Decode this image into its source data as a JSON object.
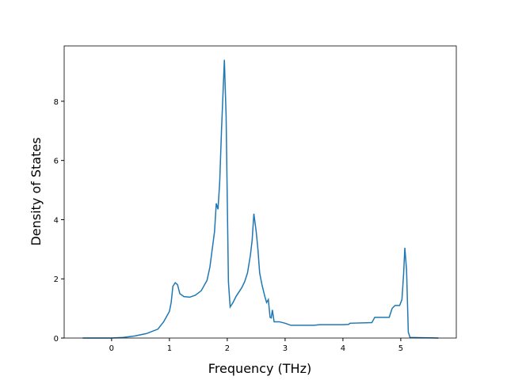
{
  "chart_data": {
    "type": "line",
    "x_label": "Frequency (THz)",
    "y_label": "Density of States",
    "xlim": [
      -0.82,
      5.96
    ],
    "ylim": [
      0,
      9.87
    ],
    "xticks": [
      0,
      1,
      2,
      3,
      4,
      5
    ],
    "yticks": [
      0,
      2,
      4,
      6,
      8
    ],
    "series": [
      {
        "color": "#1f77b4",
        "x": [
          -0.5,
          0,
          0.2,
          0.4,
          0.6,
          0.8,
          0.9,
          1.0,
          1.03,
          1.06,
          1.1,
          1.14,
          1.18,
          1.25,
          1.35,
          1.45,
          1.55,
          1.65,
          1.7,
          1.74,
          1.78,
          1.81,
          1.84,
          1.87,
          1.9,
          1.95,
          1.98,
          2.02,
          2.05,
          2.1,
          2.15,
          2.25,
          2.3,
          2.35,
          2.4,
          2.43,
          2.46,
          2.5,
          2.53,
          2.56,
          2.6,
          2.65,
          2.68,
          2.71,
          2.74,
          2.76,
          2.78,
          2.81,
          2.9,
          3.0,
          3.1,
          3.5,
          3.6,
          4.0,
          4.1,
          4.12,
          4.5,
          4.55,
          4.8,
          4.85,
          4.9,
          4.98,
          5.02,
          5.05,
          5.07,
          5.1,
          5.13,
          5.16,
          5.65
        ],
        "values": [
          0,
          0,
          0.02,
          0.07,
          0.15,
          0.3,
          0.55,
          0.9,
          1.2,
          1.75,
          1.87,
          1.8,
          1.5,
          1.4,
          1.38,
          1.45,
          1.6,
          1.95,
          2.4,
          3.0,
          3.6,
          4.55,
          4.35,
          5.3,
          7.0,
          9.4,
          7.5,
          1.9,
          1.05,
          1.2,
          1.4,
          1.7,
          1.9,
          2.2,
          2.8,
          3.3,
          4.2,
          3.6,
          3.0,
          2.2,
          1.8,
          1.4,
          1.2,
          1.3,
          0.7,
          0.68,
          0.95,
          0.55,
          0.55,
          0.5,
          0.43,
          0.43,
          0.45,
          0.45,
          0.46,
          0.5,
          0.52,
          0.7,
          0.7,
          1.0,
          1.1,
          1.1,
          1.3,
          2.2,
          3.05,
          2.3,
          0.2,
          0.02,
          0
        ]
      }
    ]
  }
}
